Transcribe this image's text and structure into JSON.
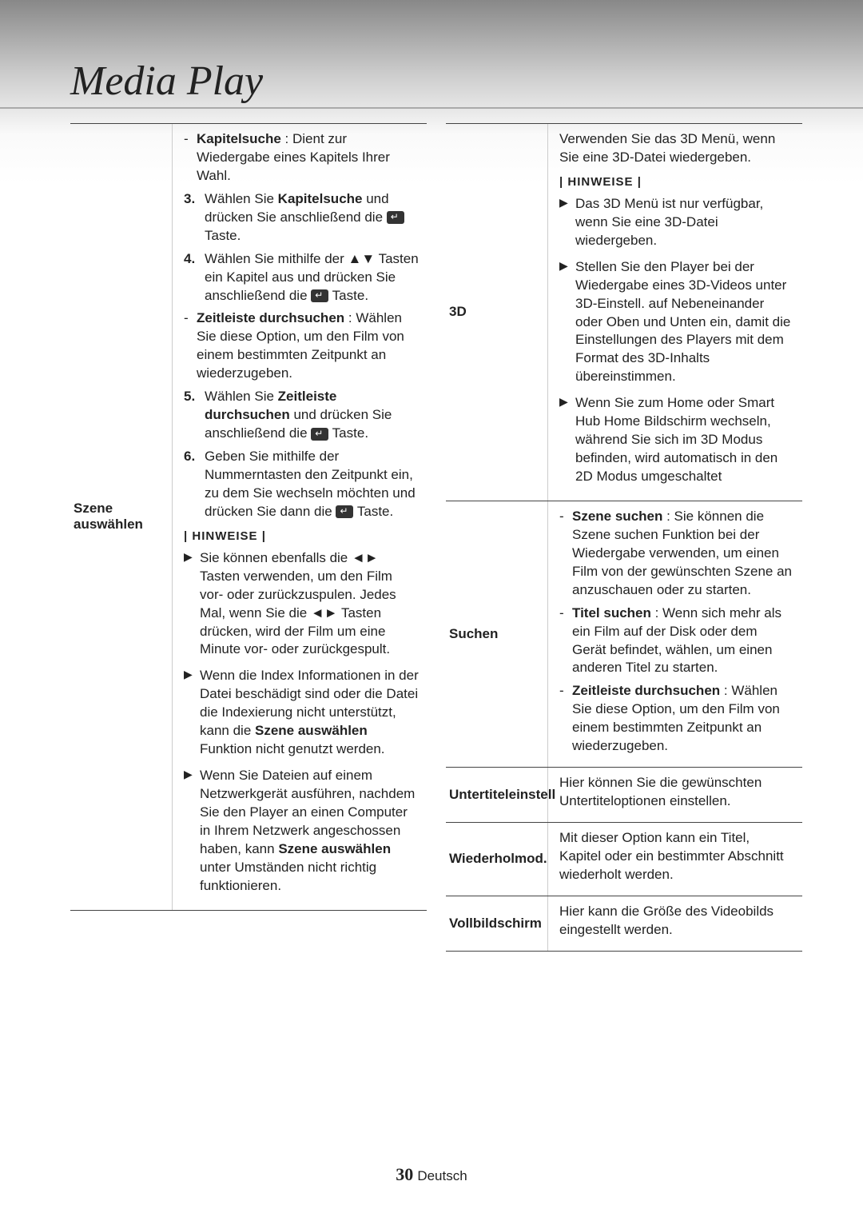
{
  "pageTitle": "Media Play",
  "pageNumber": "30",
  "language": "Deutsch",
  "hinweiseLabel": "| HINWEISE |",
  "leftColumn": {
    "szene": {
      "label": "Szene auswählen",
      "kapitelsuche": {
        "term": "Kapitelsuche",
        "desc": " : Dient zur Wiedergabe eines Kapitels Ihrer Wahl."
      },
      "step3": {
        "num": "3.",
        "textA": "Wählen Sie ",
        "bold": "Kapitelsuche",
        "textB": " und drücken Sie anschließend die ",
        "textC": " Taste."
      },
      "step4": {
        "num": "4.",
        "text": "Wählen Sie mithilfe der ▲▼ Tasten ein Kapitel aus und drücken Sie anschließend die ",
        "textEnd": " Taste."
      },
      "zeitleiste": {
        "term": "Zeitleiste durchsuchen",
        "desc": " : Wählen Sie diese Option, um den Film von einem bestimmten Zeitpunkt an wiederzugeben."
      },
      "step5": {
        "num": "5.",
        "textA": "Wählen Sie ",
        "bold": "Zeitleiste durchsuchen",
        "textB": " und drücken Sie anschließend die ",
        "textC": " Taste."
      },
      "step6": {
        "num": "6.",
        "text": "Geben Sie mithilfe der Nummerntasten den Zeitpunkt ein, zu dem Sie wechseln möchten und drücken Sie dann die ",
        "textEnd": " Taste."
      },
      "note1": "Sie können ebenfalls die ◄► Tasten verwenden, um den Film vor- oder zurückzuspulen. Jedes Mal, wenn Sie die ◄► Tasten drücken, wird der Film um eine Minute vor- oder zurückgespult.",
      "note2a": "Wenn die Index Informationen in der Datei beschädigt sind oder die Datei die Indexierung nicht unterstützt, kann die ",
      "note2bold": "Szene auswählen",
      "note2b": " Funktion nicht genutzt werden.",
      "note3a": "Wenn Sie Dateien auf einem Netzwerkgerät ausführen, nachdem Sie den Player an einen Computer in Ihrem Netzwerk angeschossen haben, kann ",
      "note3bold": "Szene auswählen",
      "note3b": " unter Umständen nicht richtig funktionieren."
    }
  },
  "rightColumn": {
    "3d": {
      "label": "3D",
      "intro": "Verwenden Sie das 3D Menü, wenn Sie eine 3D-Datei wiedergeben.",
      "note1": "Das 3D Menü ist nur verfügbar, wenn Sie eine 3D-Datei wiedergeben.",
      "note2": "Stellen Sie den Player bei der Wiedergabe eines 3D-Videos unter 3D-Einstell. auf Nebeneinander oder Oben und Unten ein, damit die Einstellungen des Players mit dem Format des 3D-Inhalts übereinstimmen.",
      "note3": "Wenn Sie zum Home oder Smart Hub Home Bildschirm wechseln, während Sie sich im 3D Modus befinden, wird automatisch in den 2D Modus umgeschaltet"
    },
    "suchen": {
      "label": "Suchen",
      "szeneSuchen": {
        "term": "Szene suchen",
        "desc": " : Sie können die Szene suchen Funktion bei der Wiedergabe verwenden, um einen Film von der gewünschten Szene an anzuschauen oder zu starten."
      },
      "titelSuchen": {
        "term": "Titel suchen",
        "desc": " : Wenn sich mehr als ein Film auf der Disk oder dem Gerät befindet, wählen, um einen anderen Titel zu starten."
      },
      "zeitleiste": {
        "term": "Zeitleiste durchsuchen",
        "desc": " : Wählen Sie diese Option, um den Film von einem bestimmten Zeitpunkt an wiederzugeben."
      }
    },
    "untertitel": {
      "label": "Untertiteleinstell",
      "desc": "Hier können Sie die gewünschten Untertiteloptionen einstellen."
    },
    "wiederholmod": {
      "label": "Wiederholmod.",
      "desc": "Mit dieser Option kann ein Titel, Kapitel oder ein bestimmter Abschnitt wiederholt werden."
    },
    "vollbild": {
      "label": "Vollbildschirm",
      "desc": "Hier kann die Größe des Videobilds eingestellt werden."
    }
  }
}
